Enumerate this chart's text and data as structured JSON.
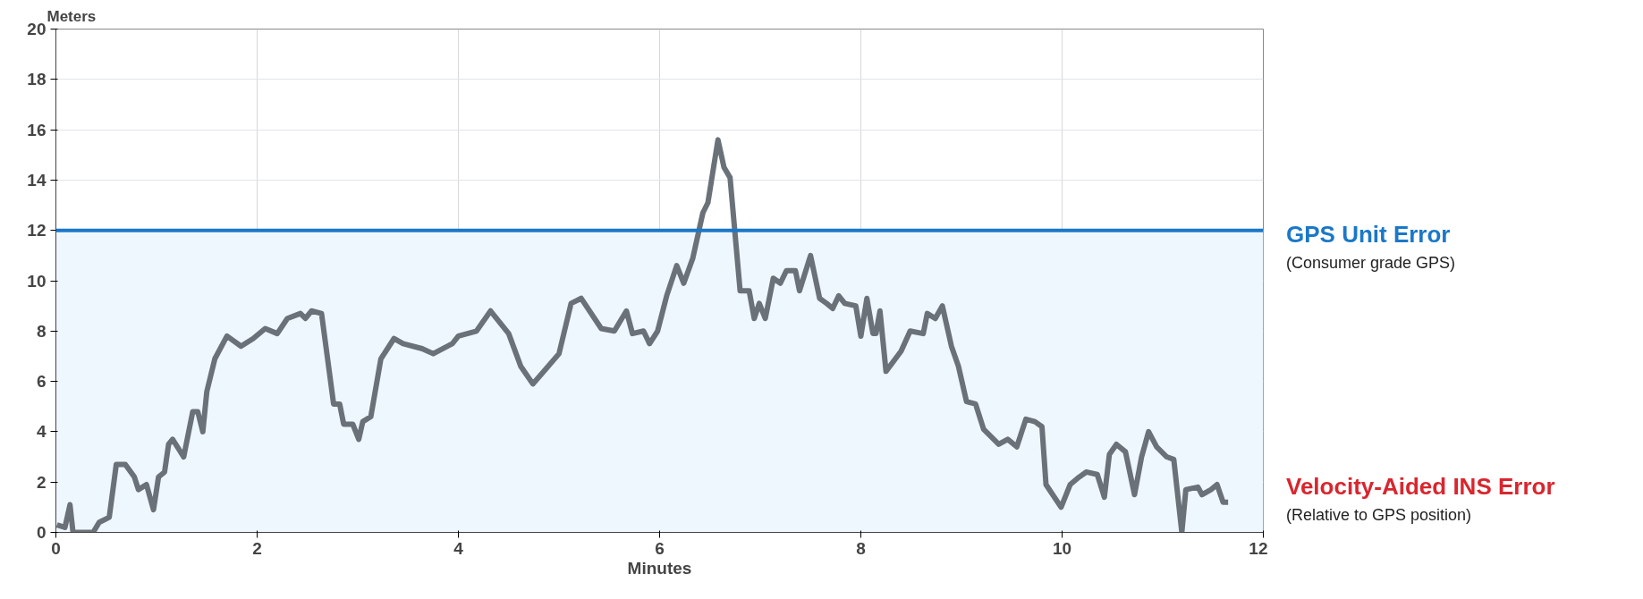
{
  "chart_data": {
    "type": "line",
    "xlabel": "Minutes",
    "ylabel": "Meters",
    "xlim": [
      0,
      12
    ],
    "xticks": [
      0,
      2,
      4,
      6,
      8,
      10,
      12
    ],
    "ylim": [
      0,
      20
    ],
    "yticks": [
      0,
      2,
      4,
      6,
      8,
      10,
      12,
      14,
      16,
      18,
      20
    ],
    "grid": true,
    "marker": "none",
    "line_style": "solid",
    "bands": [
      {
        "axis": "y",
        "from": 0,
        "to": 12,
        "color": "#eff7fe"
      }
    ],
    "ref_lines": [
      {
        "axis": "y",
        "value": 12,
        "label": "GPS Unit Error",
        "color": "#1a78c8"
      }
    ],
    "annotations": [
      "(Consumer grade GPS)",
      "(Relative to GPS position)"
    ],
    "series": [
      {
        "name": "Velocity-Aided INS Error",
        "color": "#6b7178",
        "x": [
          0.01,
          0.09,
          0.14,
          0.17,
          0.37,
          0.43,
          0.53,
          0.6,
          0.69,
          0.78,
          0.82,
          0.9,
          0.97,
          1.02,
          1.08,
          1.12,
          1.16,
          1.27,
          1.36,
          1.41,
          1.46,
          1.5,
          1.58,
          1.7,
          1.84,
          1.96,
          2.08,
          2.2,
          2.3,
          2.43,
          2.48,
          2.54,
          2.64,
          2.68,
          2.76,
          2.82,
          2.86,
          2.95,
          3.01,
          3.05,
          3.13,
          3.23,
          3.36,
          3.45,
          3.64,
          3.75,
          3.94,
          4.0,
          4.18,
          4.32,
          4.5,
          4.62,
          4.74,
          4.85,
          5.0,
          5.12,
          5.22,
          5.42,
          5.55,
          5.67,
          5.73,
          5.84,
          5.9,
          5.98,
          6.07,
          6.17,
          6.24,
          6.33,
          6.43,
          6.48,
          6.58,
          6.64,
          6.7,
          6.8,
          6.89,
          6.94,
          6.99,
          7.05,
          7.13,
          7.2,
          7.26,
          7.35,
          7.39,
          7.5,
          7.59,
          7.66,
          7.72,
          7.78,
          7.84,
          7.95,
          8.0,
          8.06,
          8.12,
          8.15,
          8.19,
          8.25,
          8.4,
          8.49,
          8.62,
          8.66,
          8.74,
          8.81,
          8.9,
          8.97,
          9.05,
          9.14,
          9.22,
          9.37,
          9.46,
          9.55,
          9.64,
          9.73,
          9.8,
          9.84,
          9.99,
          10.08,
          10.17,
          10.24,
          10.35,
          10.42,
          10.47,
          10.54,
          10.63,
          10.72,
          10.79,
          10.86,
          10.94,
          11.04,
          11.11,
          11.19,
          11.23,
          11.35,
          11.39,
          11.48,
          11.54,
          11.6,
          11.65
        ],
        "values": [
          0.3,
          0.2,
          1.1,
          0.0,
          0.0,
          0.4,
          0.6,
          2.7,
          2.7,
          2.2,
          1.7,
          1.9,
          0.9,
          2.2,
          2.4,
          3.5,
          3.7,
          3.0,
          4.8,
          4.8,
          4.0,
          5.6,
          6.9,
          7.8,
          7.4,
          7.7,
          8.1,
          7.9,
          8.5,
          8.7,
          8.5,
          8.8,
          8.7,
          7.5,
          5.1,
          5.1,
          4.3,
          4.3,
          3.7,
          4.4,
          4.6,
          6.9,
          7.7,
          7.5,
          7.3,
          7.1,
          7.5,
          7.8,
          8.0,
          8.8,
          7.9,
          6.6,
          5.9,
          6.4,
          7.1,
          9.1,
          9.3,
          8.1,
          8.0,
          8.8,
          7.9,
          8.0,
          7.5,
          8.0,
          9.4,
          10.6,
          9.9,
          10.9,
          12.7,
          13.1,
          15.6,
          14.5,
          14.1,
          9.6,
          9.6,
          8.5,
          9.1,
          8.5,
          10.1,
          9.9,
          10.4,
          10.4,
          9.6,
          11.0,
          9.3,
          9.1,
          8.9,
          9.4,
          9.1,
          9.0,
          7.8,
          9.3,
          7.9,
          7.9,
          8.8,
          6.4,
          7.2,
          8.0,
          7.9,
          8.7,
          8.5,
          9.0,
          7.4,
          6.6,
          5.2,
          5.1,
          4.1,
          3.5,
          3.7,
          3.4,
          4.5,
          4.4,
          4.2,
          1.9,
          1.0,
          1.9,
          2.2,
          2.4,
          2.3,
          1.4,
          3.1,
          3.5,
          3.2,
          1.5,
          3.0,
          4.0,
          3.4,
          3.0,
          2.9,
          0.0,
          1.7,
          1.8,
          1.5,
          1.7,
          1.9,
          1.2,
          1.2
        ]
      }
    ]
  }
}
